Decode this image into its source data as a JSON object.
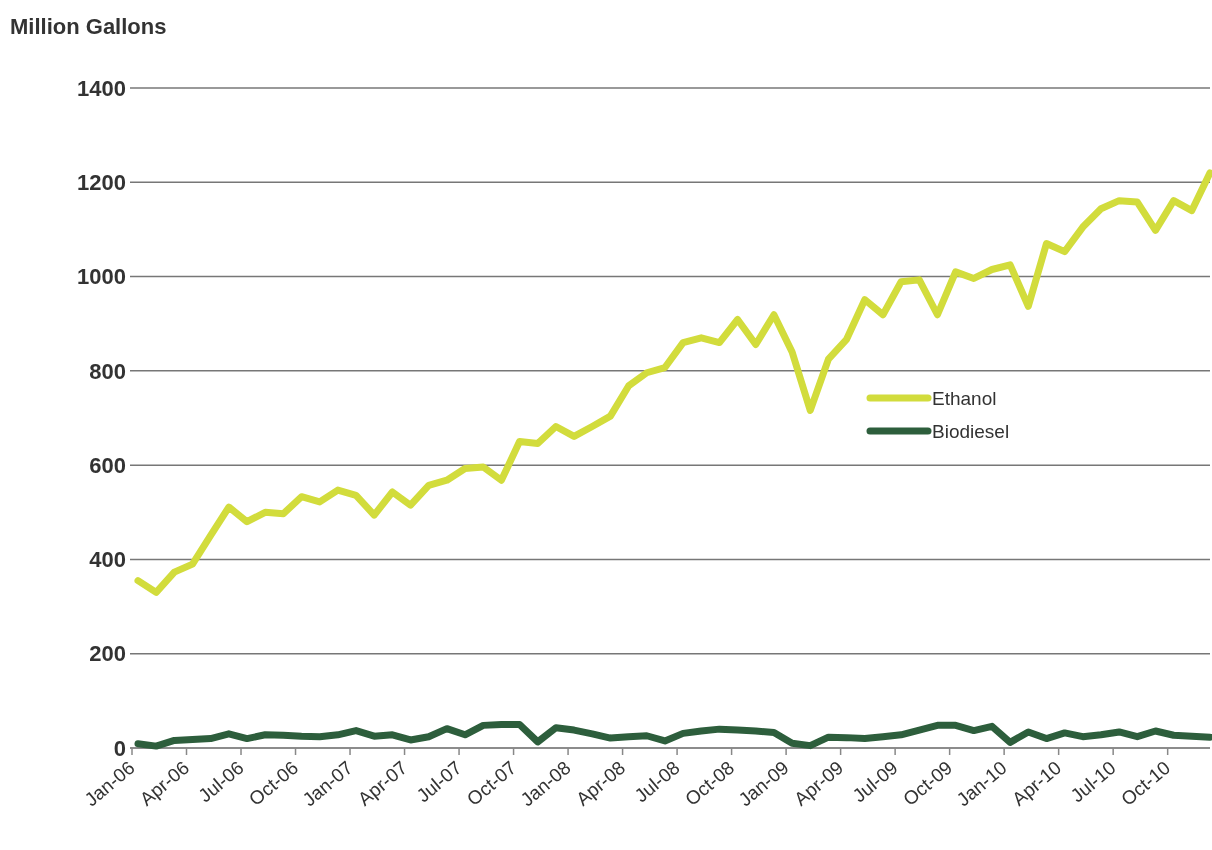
{
  "chart_data": {
    "type": "line",
    "ylabel": "Million Gallons",
    "categories": [
      "Jan-06",
      null,
      null,
      "Apr-06",
      null,
      null,
      "Jul-06",
      null,
      null,
      "Oct-06",
      null,
      null,
      "Jan-07",
      null,
      null,
      "Apr-07",
      null,
      null,
      "Jul-07",
      null,
      null,
      "Oct-07",
      null,
      null,
      "Jan-08",
      null,
      null,
      "Apr-08",
      null,
      null,
      "Jul-08",
      null,
      null,
      "Oct-08",
      null,
      null,
      "Jan-09",
      null,
      null,
      "Apr-09",
      null,
      null,
      "Jul-09",
      null,
      null,
      "Oct-09",
      null,
      null,
      "Jan-10",
      null,
      null,
      "Apr-10",
      null,
      null,
      "Jul-10",
      null,
      null,
      "Oct-10",
      null,
      null
    ],
    "series": [
      {
        "name": "Ethanol",
        "color": "#d2dc3c",
        "values": [
          355,
          330,
          373,
          390,
          451,
          511,
          480,
          500,
          497,
          533,
          522,
          547,
          536,
          494,
          543,
          515,
          557,
          568,
          593,
          596,
          568,
          650,
          646,
          682,
          661,
          682,
          704,
          768,
          796,
          807,
          860,
          870,
          860,
          909,
          856,
          919,
          840,
          716,
          825,
          867,
          951,
          919,
          989,
          993,
          919,
          1010,
          996,
          1015,
          1025,
          937,
          1070,
          1053,
          1105,
          1144,
          1161,
          1158,
          1098,
          1161,
          1140,
          1220
        ]
      },
      {
        "name": "Biodiesel",
        "color": "#2d5e3c",
        "values": [
          9,
          4,
          16,
          18,
          20,
          30,
          20,
          28,
          27,
          25,
          24,
          28,
          37,
          25,
          28,
          17,
          24,
          41,
          28,
          48,
          50,
          50,
          13,
          43,
          38,
          30,
          21,
          24,
          26,
          15,
          31,
          36,
          40,
          38,
          36,
          33,
          10,
          5,
          23,
          22,
          20,
          24,
          28,
          38,
          48,
          48,
          37,
          46,
          12,
          34,
          20,
          32,
          24,
          28,
          34,
          24,
          36,
          27,
          25,
          23
        ]
      }
    ],
    "ylim": [
      0,
      1400
    ],
    "yticks": [
      0,
      200,
      400,
      600,
      800,
      1000,
      1200,
      1400
    ],
    "grid": "y",
    "legend": "right",
    "line_style": "solid",
    "marker": "none"
  }
}
